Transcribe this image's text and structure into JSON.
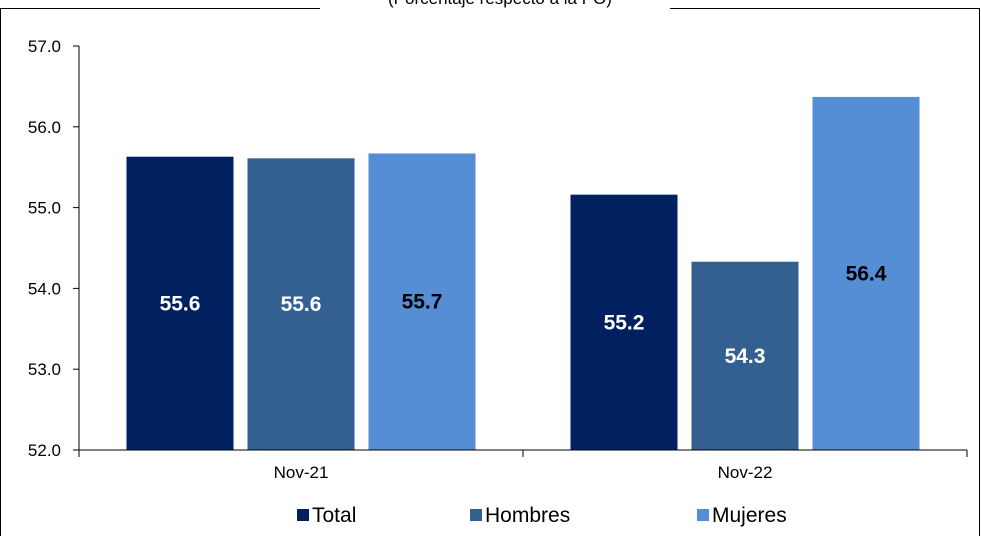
{
  "chart_data": {
    "type": "bar",
    "subtitle": "(Porcentaje respecto a la PO)",
    "categories": [
      "Nov-21",
      "Nov-22"
    ],
    "series": [
      {
        "name": "Total",
        "values": [
          55.63,
          55.16
        ],
        "labels": [
          "55.6",
          "55.2"
        ],
        "color": "#002060",
        "label_color": "#ffffff"
      },
      {
        "name": "Hombres",
        "values": [
          55.61,
          54.33
        ],
        "labels": [
          "55.6",
          "54.3"
        ],
        "color": "#335F91",
        "label_color": "#ffffff"
      },
      {
        "name": "Mujeres",
        "values": [
          55.67,
          56.37
        ],
        "labels": [
          "55.7",
          "56.4"
        ],
        "color": "#558ED5",
        "label_color": "#000000"
      }
    ],
    "ylim": [
      52.0,
      57.0
    ],
    "yticks": [
      "52.0",
      "53.0",
      "54.0",
      "55.0",
      "56.0",
      "57.0"
    ],
    "grid": false,
    "legend_position": "bottom"
  }
}
